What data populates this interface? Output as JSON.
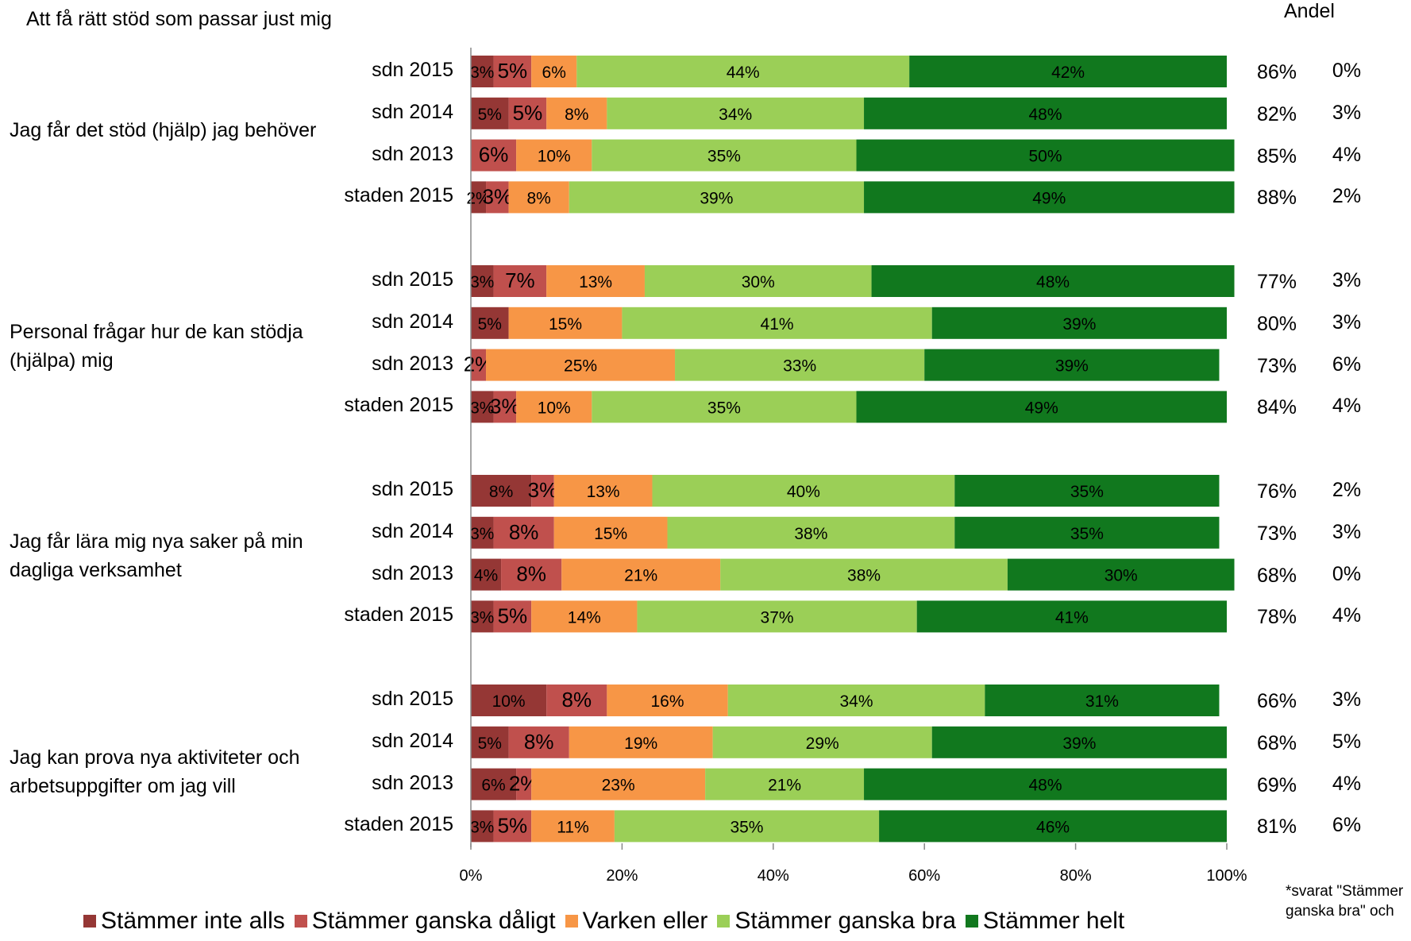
{
  "title": "Att få rätt stöd som passar just mig",
  "andel_header": "Andel",
  "note": "*svarat \"Stämmer ganska bra\" och",
  "colors": {
    "inte_alls": "#953735",
    "ganska_daligt": "#c0504d",
    "varken": "#f79646",
    "ganska_bra": "#9bcf57",
    "helt": "#11781e"
  },
  "chart_data": {
    "type": "bar",
    "orientation": "horizontal",
    "stacked": true,
    "xlim": [
      0,
      100
    ],
    "x_ticks": [
      "0%",
      "20%",
      "40%",
      "60%",
      "80%",
      "100%"
    ],
    "series_names": [
      "Stämmer inte alls",
      "Stämmer ganska dåligt",
      "Varken eller",
      "Stämmer ganska bra",
      "Stämmer helt"
    ],
    "groups": [
      {
        "label": "Jag får det stöd (hjälp) jag behöver",
        "rows": [
          {
            "label": "sdn 2015",
            "values": [
              3,
              5,
              6,
              44,
              42
            ],
            "andel": "86%",
            "second": "0%"
          },
          {
            "label": "sdn 2014",
            "values": [
              5,
              5,
              8,
              34,
              48
            ],
            "andel": "82%",
            "second": "3%"
          },
          {
            "label": "sdn 2013",
            "values": [
              0,
              6,
              10,
              35,
              50
            ],
            "andel": "85%",
            "second": "4%"
          },
          {
            "label": "staden 2015",
            "values": [
              2,
              3,
              8,
              39,
              49
            ],
            "andel": "88%",
            "second": "2%"
          }
        ]
      },
      {
        "label": "Personal frågar hur de kan stödja (hjälpa) mig",
        "rows": [
          {
            "label": "sdn 2015",
            "values": [
              3,
              7,
              13,
              30,
              48
            ],
            "andel": "77%",
            "second": "3%"
          },
          {
            "label": "sdn 2014",
            "values": [
              5,
              0,
              15,
              41,
              39
            ],
            "andel": "80%",
            "second": "3%"
          },
          {
            "label": "sdn 2013",
            "values": [
              0,
              2,
              25,
              33,
              39
            ],
            "andel": "73%",
            "second": "6%"
          },
          {
            "label": "staden 2015",
            "values": [
              3,
              3,
              10,
              35,
              49
            ],
            "andel": "84%",
            "second": "4%"
          }
        ]
      },
      {
        "label": "Jag får lära mig nya saker på min dagliga verksamhet",
        "rows": [
          {
            "label": "sdn 2015",
            "values": [
              8,
              3,
              13,
              40,
              35
            ],
            "andel": "76%",
            "second": "2%"
          },
          {
            "label": "sdn 2014",
            "values": [
              3,
              8,
              15,
              38,
              35
            ],
            "andel": "73%",
            "second": "3%"
          },
          {
            "label": "sdn 2013",
            "values": [
              4,
              8,
              21,
              38,
              30
            ],
            "andel": "68%",
            "second": "0%"
          },
          {
            "label": "staden 2015",
            "values": [
              3,
              5,
              14,
              37,
              41
            ],
            "andel": "78%",
            "second": "4%"
          }
        ]
      },
      {
        "label": "Jag kan prova nya aktiviteter och arbetsuppgifter om jag vill",
        "rows": [
          {
            "label": "sdn 2015",
            "values": [
              10,
              8,
              16,
              34,
              31
            ],
            "andel": "66%",
            "second": "3%"
          },
          {
            "label": "sdn 2014",
            "values": [
              5,
              8,
              19,
              29,
              39
            ],
            "andel": "68%",
            "second": "5%"
          },
          {
            "label": "sdn 2013",
            "values": [
              6,
              2,
              23,
              21,
              48
            ],
            "andel": "69%",
            "second": "4%"
          },
          {
            "label": "staden 2015",
            "values": [
              3,
              5,
              11,
              35,
              46
            ],
            "andel": "81%",
            "second": "6%"
          }
        ]
      }
    ]
  }
}
